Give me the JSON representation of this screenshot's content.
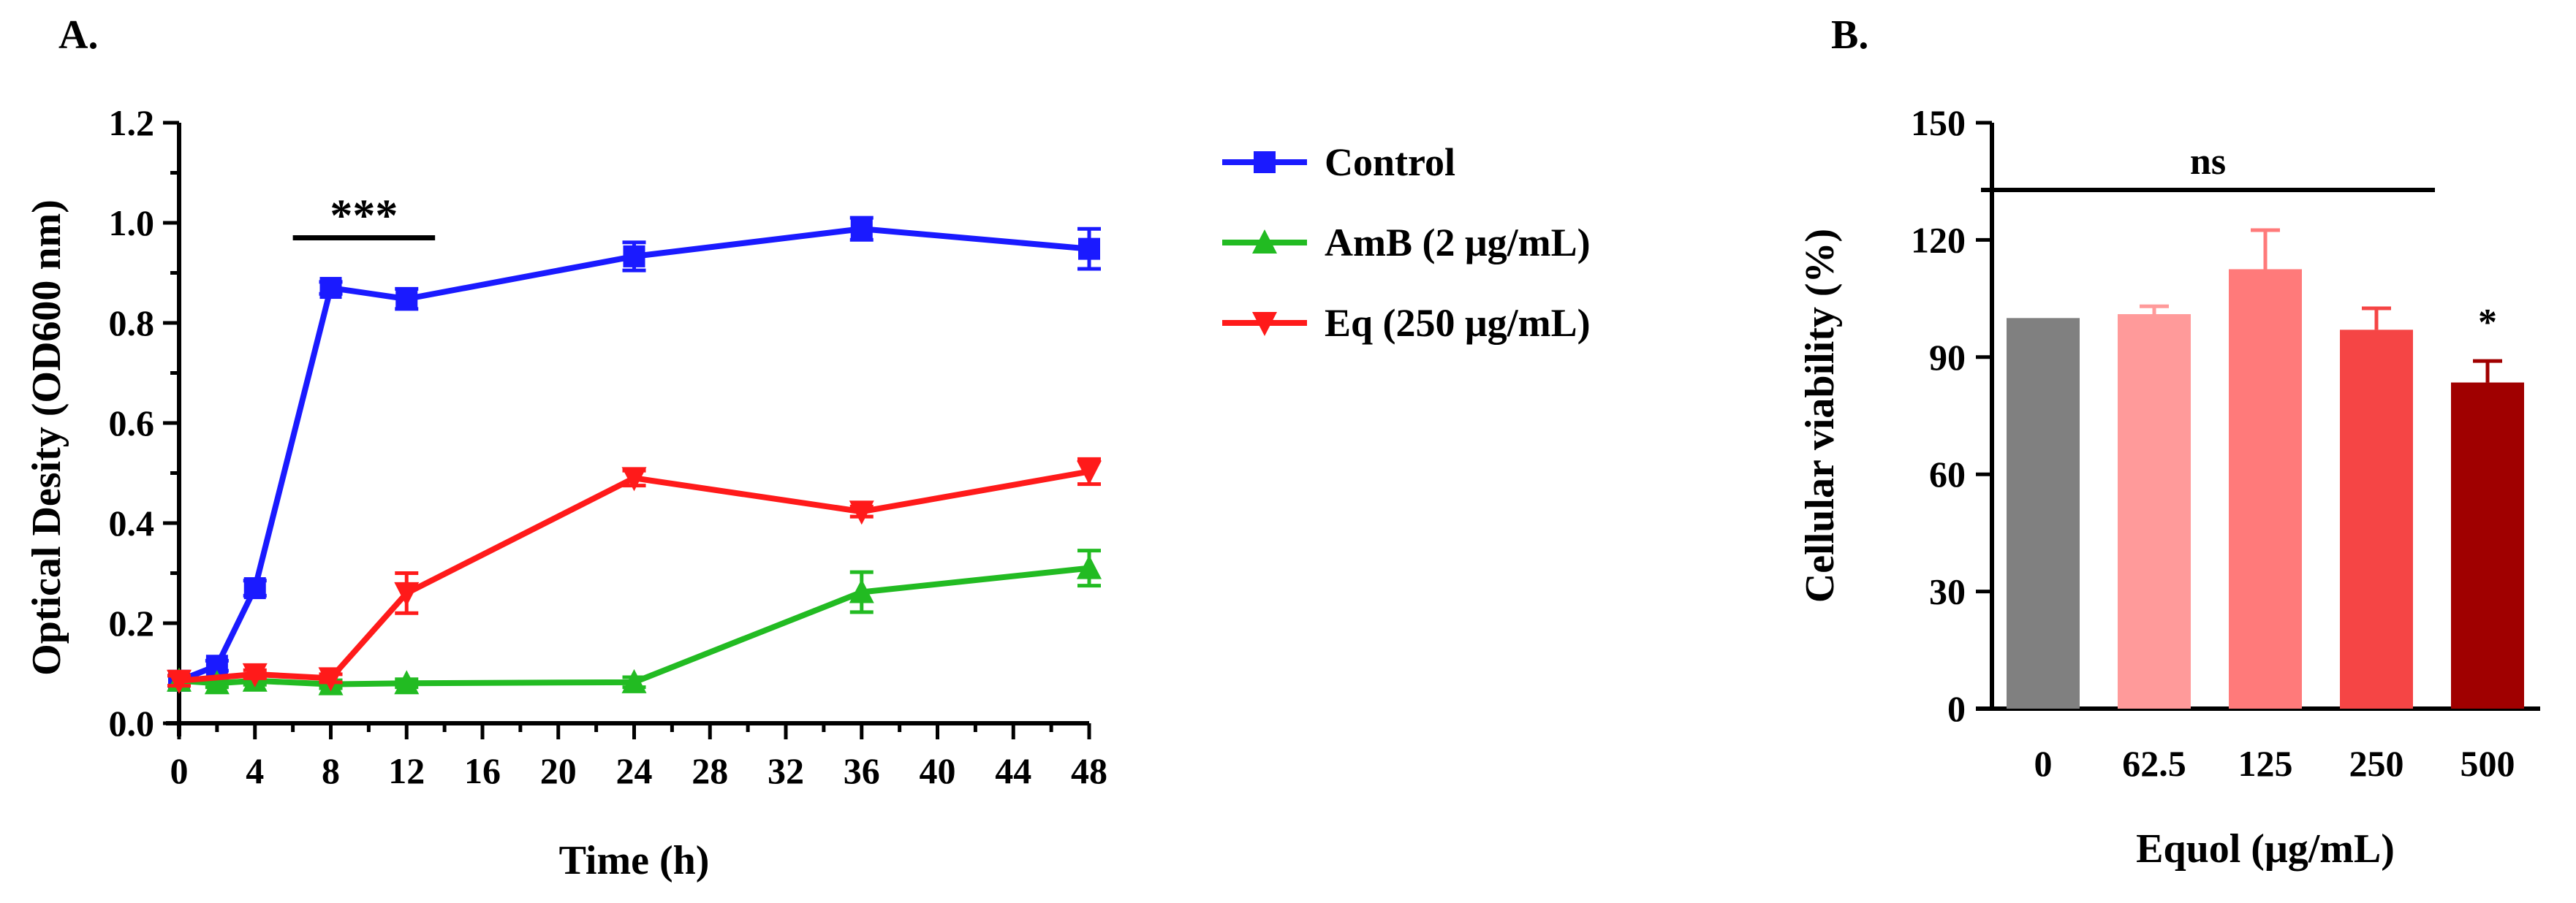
{
  "panels": {
    "a_label": "A.",
    "b_label": "B."
  },
  "chart_data": [
    {
      "type": "line",
      "panel": "A.",
      "xlabel": "Time (h)",
      "ylabel": "Optical Desity (OD600 nm)",
      "xlim": [
        0,
        48
      ],
      "ylim": [
        0,
        1.2
      ],
      "x_ticks": [
        "0",
        "4",
        "8",
        "12",
        "16",
        "20",
        "24",
        "28",
        "32",
        "36",
        "40",
        "44",
        "48"
      ],
      "y_ticks": [
        "0.0",
        "0.2",
        "0.4",
        "0.6",
        "0.8",
        "1.0",
        "1.2"
      ],
      "significance": {
        "label": "***",
        "x_start": 6,
        "x_end": 13.5,
        "y": 0.97
      },
      "legend_position": "right",
      "series": [
        {
          "name": "Control",
          "color": "#1a1aff",
          "marker": "square",
          "x": [
            0,
            2,
            4,
            8,
            12,
            24,
            36,
            48
          ],
          "values": [
            0.085,
            0.115,
            0.27,
            0.87,
            0.848,
            0.933,
            0.988,
            0.948
          ],
          "errors": [
            0.01,
            0.01,
            0.015,
            0.012,
            0.02,
            0.028,
            0.022,
            0.04
          ]
        },
        {
          "name": "AmB (2 μg/mL)",
          "color": "#22bb22",
          "marker": "triangle-up",
          "x": [
            0,
            2,
            4,
            8,
            12,
            24,
            36,
            48
          ],
          "values": [
            0.085,
            0.08,
            0.085,
            0.078,
            0.08,
            0.082,
            0.262,
            0.31
          ],
          "errors": [
            0.01,
            0.008,
            0.008,
            0.008,
            0.008,
            0.01,
            0.04,
            0.035
          ]
        },
        {
          "name": "Eq (250 μg/mL)",
          "color": "#ff1a1a",
          "marker": "triangle-down",
          "x": [
            0,
            4,
            8,
            12,
            24,
            36,
            48
          ],
          "values": [
            0.085,
            0.098,
            0.09,
            0.26,
            0.49,
            0.423,
            0.503
          ],
          "errors": [
            0.01,
            0.008,
            0.008,
            0.04,
            0.015,
            0.01,
            0.025
          ]
        }
      ]
    },
    {
      "type": "bar",
      "panel": "B.",
      "xlabel": "Equol (μg/mL)",
      "ylabel": "Cellular viability (%)",
      "ylim": [
        0,
        150
      ],
      "y_ticks": [
        "0",
        "30",
        "60",
        "90",
        "120",
        "150"
      ],
      "categories": [
        "0",
        "62.5",
        "125",
        "250",
        "500"
      ],
      "values": [
        100,
        101,
        112.5,
        97,
        83.5
      ],
      "errors": [
        0,
        2,
        10,
        5.5,
        5.5
      ],
      "colors": [
        "#808080",
        "#ff9a9a",
        "#ff7a7a",
        "#f54545",
        "#a00000"
      ],
      "bar_annotations": [
        "",
        "",
        "",
        "",
        "*"
      ],
      "group_annotation": {
        "label": "ns",
        "from_category": "0",
        "to_category": "250"
      }
    }
  ]
}
